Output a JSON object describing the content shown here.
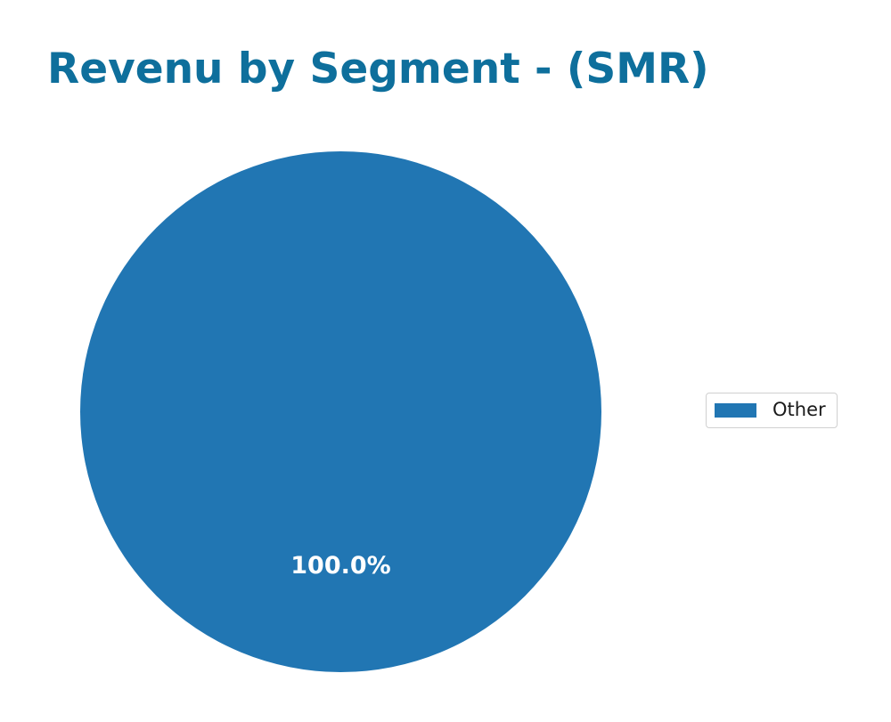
{
  "chart_data": {
    "type": "pie",
    "title": "Revenu by Segment - (SMR)",
    "categories": [
      "Other"
    ],
    "values": [
      100.0
    ],
    "labels": [
      "100.0%"
    ],
    "colors": [
      "#2176b3"
    ],
    "legend": {
      "entries": [
        "Other"
      ],
      "position": "right"
    }
  },
  "header": {
    "title": "Revenu by Segment - (SMR)"
  },
  "pie": {
    "slice_label": "100.0%"
  },
  "legend": {
    "items": [
      {
        "label": "Other",
        "color": "#2176b3"
      }
    ]
  }
}
